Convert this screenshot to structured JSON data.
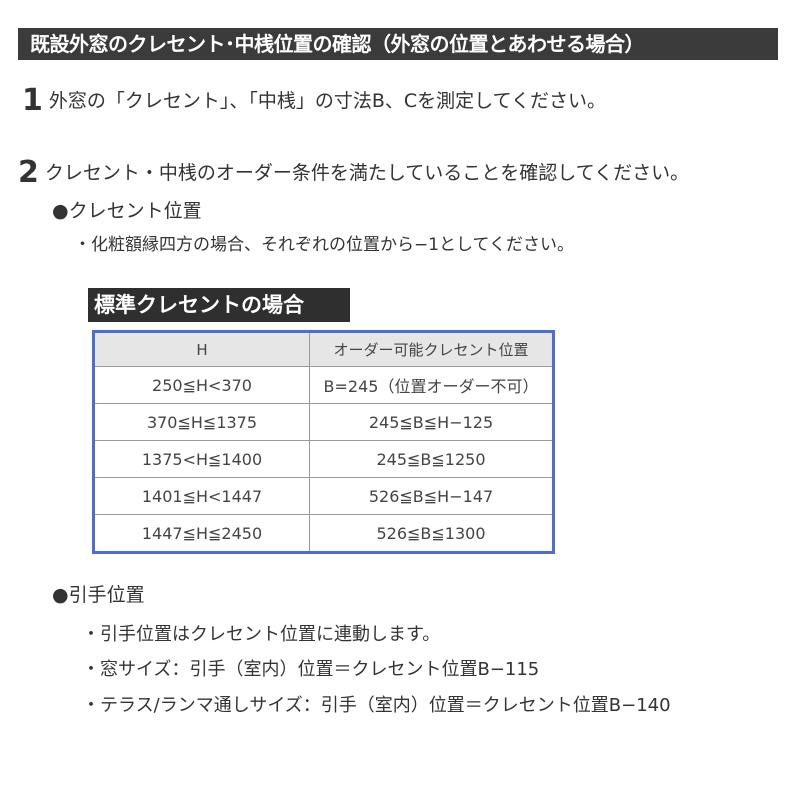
{
  "title": "既設外窓のクレセント･中桟位置の確認（外窓の位置とあわせる場合）",
  "step1": {
    "number": "1",
    "text": "外窓の「クレセント」、「中桟」の寸法B、Cを測定してください。"
  },
  "step2": {
    "number": "2",
    "text": "クレセント・中桟のオーダー条件を満たしていることを確認してください。"
  },
  "crescent": {
    "heading": "●クレセント位置",
    "note": "・化粧額縁四方の場合、それぞれの位置から−1としてください。"
  },
  "table": {
    "label": "標準クレセントの場合",
    "headers": [
      "H",
      "オーダー可能クレセント位置"
    ],
    "rows": [
      [
        "250≦H<370",
        "B=245（位置オーダー不可）"
      ],
      [
        "370≦H≦1375",
        "245≦B≦H−125"
      ],
      [
        "1375<H≦1400",
        "245≦B≦1250"
      ],
      [
        "1401≦H<1447",
        "526≦B≦H−147"
      ],
      [
        "1447≦H≦2450",
        "526≦B≦1300"
      ]
    ],
    "border_color": "#4b6ed6"
  },
  "handle": {
    "heading": "●引手位置",
    "items": [
      "・引手位置はクレセント位置に連動します。",
      "・窓サイズ：引手（室内）位置＝クレセント位置B−115",
      "・テラス/ランマ通しサイズ：引手（室内）位置＝クレセント位置B−140"
    ]
  }
}
